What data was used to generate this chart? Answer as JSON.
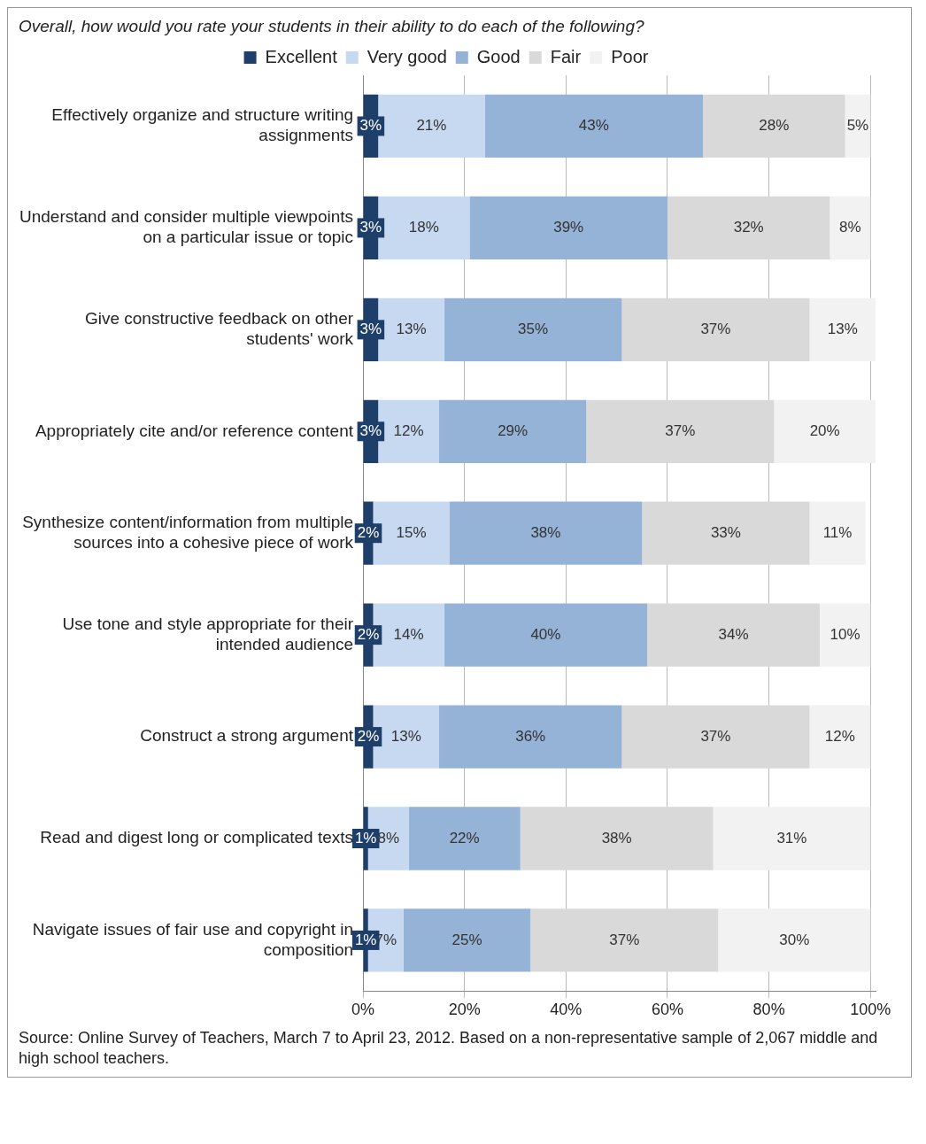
{
  "chart_data": {
    "type": "bar",
    "orientation": "horizontal",
    "stacked": true,
    "title": "Overall, how would you rate your students in their ability to do each of the following?",
    "categories": [
      "Effectively organize and structure writing assignments",
      "Understand and consider multiple viewpoints on a particular issue or topic",
      "Give constructive feedback on other students' work",
      "Appropriately cite and/or reference content",
      "Synthesize content/information from multiple sources into a cohesive piece of work",
      "Use tone and style appropriate for their intended audience",
      "Construct a strong argument",
      "Read and digest long or complicated texts",
      "Navigate issues of fair use and copyright in composition"
    ],
    "series": [
      {
        "name": "Excellent",
        "color": "#1f3f6b",
        "values": [
          3,
          3,
          3,
          3,
          2,
          2,
          2,
          1,
          1
        ],
        "value_labels": [
          "3%",
          "3%",
          "3%",
          "3%",
          "2%",
          "2%",
          "2%",
          "1%",
          "1%"
        ]
      },
      {
        "name": "Very good",
        "color": "#c6d9f1",
        "values": [
          21,
          18,
          13,
          12,
          15,
          14,
          13,
          8,
          7
        ],
        "value_labels": [
          "21%",
          "18%",
          "13%",
          "12%",
          "15%",
          "14%",
          "13%",
          "8%",
          "7%"
        ]
      },
      {
        "name": "Good",
        "color": "#95b3d7",
        "values": [
          43,
          39,
          35,
          29,
          38,
          40,
          36,
          22,
          25
        ],
        "value_labels": [
          "43%",
          "39%",
          "35%",
          "29%",
          "38%",
          "40%",
          "36%",
          "22%",
          "25%"
        ]
      },
      {
        "name": "Fair",
        "color": "#d9d9d9",
        "values": [
          28,
          32,
          37,
          37,
          33,
          34,
          37,
          38,
          37
        ],
        "value_labels": [
          "28%",
          "32%",
          "37%",
          "37%",
          "33%",
          "34%",
          "37%",
          "38%",
          "37%"
        ]
      },
      {
        "name": "Poor",
        "color": "#f2f2f2",
        "values": [
          5,
          8,
          13,
          20,
          11,
          10,
          12,
          31,
          30
        ],
        "value_labels": [
          "5%",
          "8%",
          "13%",
          "20%",
          "11%",
          "10%",
          "12%",
          "31%",
          "30%"
        ]
      }
    ],
    "xlim": [
      0,
      101
    ],
    "xticks": [
      {
        "value": 0,
        "label": "0%"
      },
      {
        "value": 20,
        "label": "20%"
      },
      {
        "value": 40,
        "label": "40%"
      },
      {
        "value": 60,
        "label": "60%"
      },
      {
        "value": 80,
        "label": "80%"
      },
      {
        "value": 100,
        "label": "100%"
      }
    ],
    "grid": "x",
    "legend": "top",
    "annotations": [
      "Source: Online Survey of Teachers, March 7 to April 23, 2012.  Based on a non-representative sample of 2,067 middle and high school teachers."
    ]
  }
}
